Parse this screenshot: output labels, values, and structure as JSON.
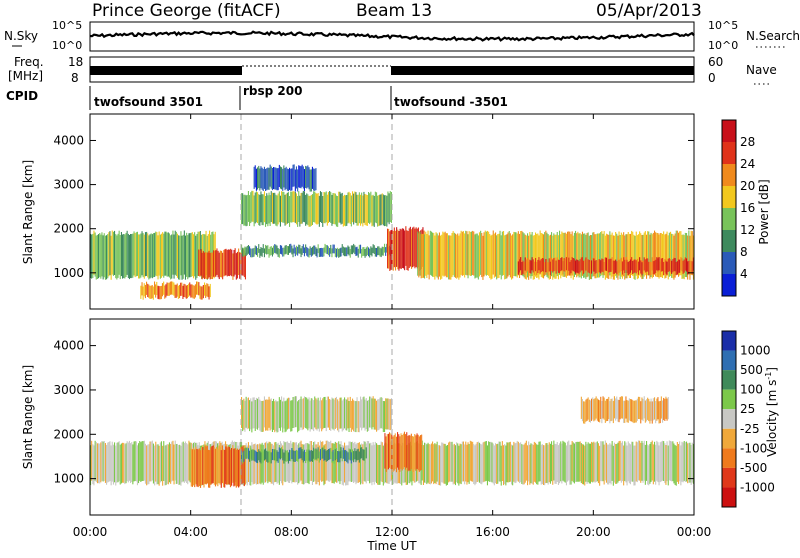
{
  "header": {
    "station": "Prince George (fitACF)",
    "beam": "Beam 13",
    "date": "05/Apr/2013"
  },
  "top_panels": {
    "nsky_label": "N.Sky",
    "nsky_ticks": [
      "10^5",
      "10^0"
    ],
    "nsearch_label": "N.Search",
    "nsearch_ticks": [
      "10^5",
      "10^0"
    ],
    "freq_label_line1": "Freq.",
    "freq_label_line2": "[MHz]",
    "freq_ticks": [
      "18",
      "8"
    ],
    "nave_label": "Nave",
    "nave_ticks": [
      "60",
      "0"
    ],
    "cpid_label": "CPID",
    "cpid_segments": [
      {
        "name": "twofsound 3501",
        "start_hour": 0,
        "end_hour": 6
      },
      {
        "name": "rbsp 200",
        "start_hour": 6,
        "end_hour": 12
      },
      {
        "name": "twofsound -3501",
        "start_hour": 12,
        "end_hour": 24
      }
    ]
  },
  "power_panel": {
    "ylabel": "Slant Range [km]",
    "yticks": [
      1000,
      2000,
      3000,
      4000
    ],
    "ylim": [
      180,
      4600
    ],
    "colorbar_label": "Power [dB]",
    "colorbar_ticks": [
      "4",
      "8",
      "12",
      "16",
      "20",
      "24",
      "28"
    ],
    "colors": [
      "#0a1fd6",
      "#2a5ab8",
      "#3e8a5e",
      "#78c35a",
      "#f2c81e",
      "#f08a1c",
      "#e0331a",
      "#c8101a"
    ]
  },
  "velocity_panel": {
    "ylabel": "Slant Range [km]",
    "yticks": [
      1000,
      2000,
      3000,
      4000
    ],
    "ylim": [
      180,
      4600
    ],
    "colorbar_label": "Velocity [m s^-1]",
    "colorbar_ticks": [
      "1000",
      "500",
      "100",
      "25",
      "-25",
      "-100",
      "-500",
      "-1000"
    ],
    "colors": [
      "#1a2ea8",
      "#2f6fb2",
      "#3f8a5a",
      "#7cc84a",
      "#c8c8c4",
      "#f0a83a",
      "#ef7a1c",
      "#e0381a",
      "#cc1010"
    ]
  },
  "xaxis": {
    "label": "Time UT",
    "ticks": [
      "00:00",
      "04:00",
      "08:00",
      "12:00",
      "16:00",
      "20:00",
      "00:00"
    ],
    "xlim_hours": [
      0,
      24
    ]
  },
  "chart_data": [
    {
      "type": "heatmap",
      "title": "Power",
      "xlabel": "Time UT",
      "ylabel": "Slant Range [km]",
      "colorbar": "Power [dB]",
      "xlim": [
        0,
        24
      ],
      "ylim": [
        180,
        4600
      ],
      "bands": [
        {
          "t_start": 0.0,
          "t_end": 5.0,
          "range_from": 900,
          "range_to": 1900,
          "power_db": 14
        },
        {
          "t_start": 4.3,
          "t_end": 6.2,
          "range_from": 900,
          "range_to": 1500,
          "power_db": 26
        },
        {
          "t_start": 2.0,
          "t_end": 4.8,
          "range_from": 450,
          "range_to": 750,
          "power_db": 20
        },
        {
          "t_start": 6.0,
          "t_end": 12.0,
          "range_from": 2100,
          "range_to": 2800,
          "power_db": 12
        },
        {
          "t_start": 6.0,
          "t_end": 12.0,
          "range_from": 1400,
          "range_to": 1600,
          "power_db": 10
        },
        {
          "t_start": 6.5,
          "t_end": 9.0,
          "range_from": 2900,
          "range_to": 3400,
          "power_db": 6
        },
        {
          "t_start": 11.8,
          "t_end": 13.3,
          "range_from": 1100,
          "range_to": 2000,
          "power_db": 24
        },
        {
          "t_start": 13.0,
          "t_end": 24.0,
          "range_from": 900,
          "range_to": 1900,
          "power_db": 16
        },
        {
          "t_start": 17.0,
          "t_end": 24.0,
          "range_from": 1000,
          "range_to": 1300,
          "power_db": 24
        }
      ]
    },
    {
      "type": "heatmap",
      "title": "Velocity",
      "xlabel": "Time UT",
      "ylabel": "Slant Range [km]",
      "colorbar": "Velocity [m s^-1]",
      "xlim": [
        0,
        24
      ],
      "ylim": [
        180,
        4600
      ],
      "bands": [
        {
          "t_start": 0.0,
          "t_end": 24.0,
          "range_from": 900,
          "range_to": 1800,
          "velocity_ms": 0
        },
        {
          "t_start": 4.0,
          "t_end": 6.2,
          "range_from": 850,
          "range_to": 1700,
          "velocity_ms": -500
        },
        {
          "t_start": 6.0,
          "t_end": 11.0,
          "range_from": 1400,
          "range_to": 1650,
          "velocity_ms": 100
        },
        {
          "t_start": 6.0,
          "t_end": 12.0,
          "range_from": 2100,
          "range_to": 2800,
          "velocity_ms": 0
        },
        {
          "t_start": 11.7,
          "t_end": 13.2,
          "range_from": 1200,
          "range_to": 2000,
          "velocity_ms": -500
        },
        {
          "t_start": 19.5,
          "t_end": 23.0,
          "range_from": 2300,
          "range_to": 2800,
          "velocity_ms": -100
        }
      ]
    }
  ]
}
